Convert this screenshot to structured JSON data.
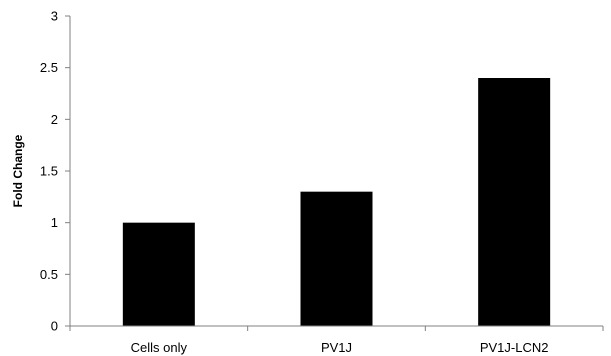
{
  "chart_data": {
    "type": "bar",
    "title": "",
    "xlabel": "",
    "ylabel": "Fold Change",
    "categories": [
      "Cells only",
      "PV1J",
      "PV1J-LCN2"
    ],
    "values": [
      1.0,
      1.3,
      2.4
    ],
    "ylim": [
      0,
      3
    ],
    "yticks": [
      "0",
      "0.5",
      "1",
      "1.5",
      "2",
      "2.5",
      "3"
    ],
    "grid": false,
    "legend": "none",
    "bar_color": "#000000",
    "axis_color": "#808080"
  }
}
